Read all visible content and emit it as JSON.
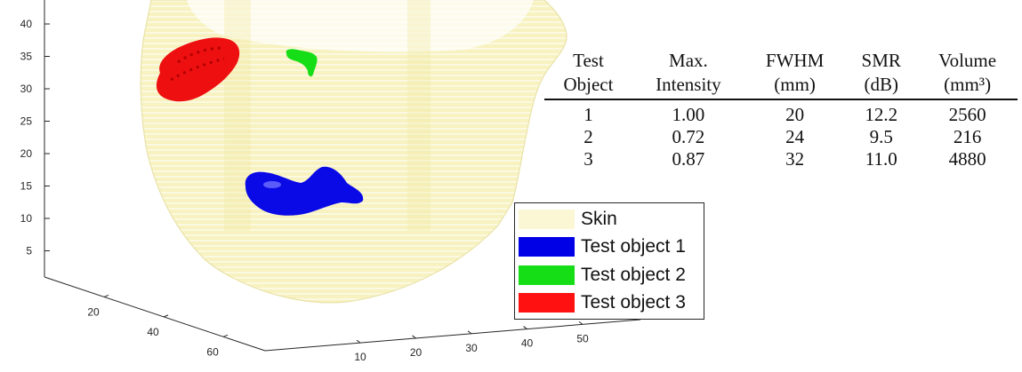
{
  "chart_data": {
    "type": "3d-isosurface",
    "axes": {
      "z_ticks": [
        "5",
        "10",
        "15",
        "20",
        "25",
        "30",
        "35",
        "40"
      ],
      "y_ticks": [
        "20",
        "40",
        "60"
      ],
      "x_ticks": [
        "10",
        "20",
        "30",
        "40",
        "50"
      ]
    },
    "legend": {
      "placement": "bottom-center",
      "entries": [
        {
          "label": "Skin",
          "color": "#fbf7d5"
        },
        {
          "label": "Test object 1",
          "color": "#0000e6"
        },
        {
          "label": "Test object 2",
          "color": "#16de16"
        },
        {
          "label": "Test object 3",
          "color": "#ff1111"
        }
      ]
    },
    "table": {
      "headers": [
        [
          "Test",
          "Object"
        ],
        [
          "Max.",
          "Intensity"
        ],
        [
          "FWHM",
          "(mm)"
        ],
        [
          "SMR",
          "(dB)"
        ],
        [
          "Volume",
          "(mm³)"
        ]
      ],
      "rows": [
        [
          "1",
          "1.00",
          "20",
          "12.2",
          "2560"
        ],
        [
          "2",
          "0.72",
          "24",
          "9.5",
          "216"
        ],
        [
          "3",
          "0.87",
          "32",
          "11.0",
          "4880"
        ]
      ]
    }
  }
}
